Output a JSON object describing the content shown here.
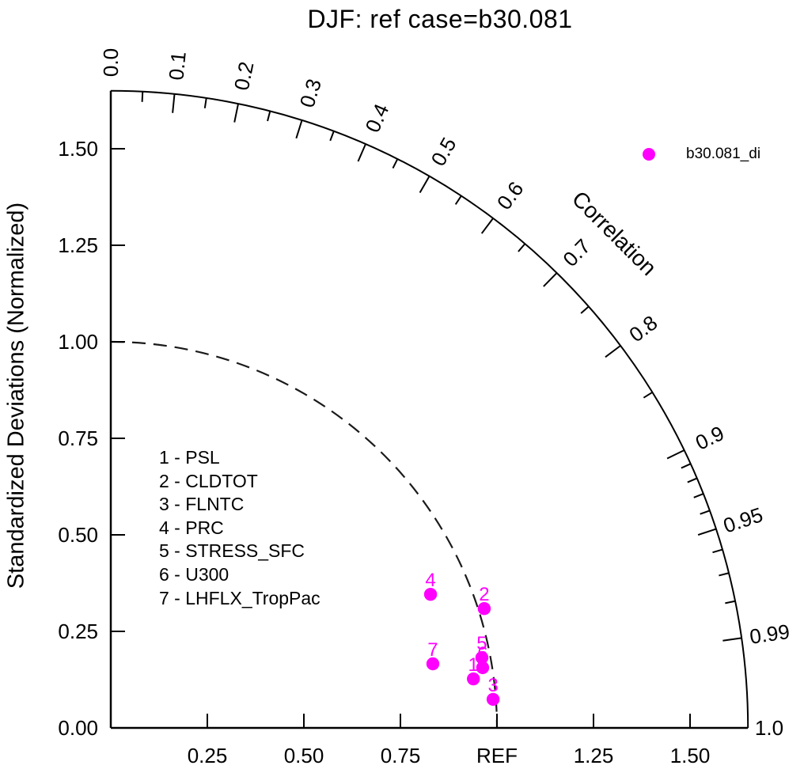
{
  "title": "DJF: ref case=b30.081",
  "ylabel": "Standardized Deviations (Normalized)",
  "legend": {
    "label": "b30.081_di",
    "marker_color": "#FF00FF"
  },
  "variable_key": {
    "items": [
      "1 - PSL",
      "2 - CLDTOT",
      "3 - FLNTC",
      "4 - PRC",
      "5 - STRESS_SFC",
      "6 - U300",
      "7 - LHFLX_TropPac"
    ]
  },
  "colors": {
    "marker": "#FF00FF",
    "axis": "#000000",
    "reference_arc": "#1a1a1a",
    "text": "#000000",
    "background": "#FFFFFF"
  },
  "chart_data": {
    "type": "scatter",
    "variant": "taylor_diagram",
    "title": "DJF: ref case=b30.081",
    "ylabel": "Standardized Deviations (Normalized)",
    "arc_label": "Correlation",
    "radial_limit": 1.65,
    "reference_radius": 1.0,
    "x_axis": {
      "tick_values": [
        0.25,
        0.5,
        0.75,
        1.0,
        1.25,
        1.5
      ],
      "tick_labels": [
        "0.25",
        "0.50",
        "0.75",
        "REF",
        "1.25",
        "1.50"
      ]
    },
    "y_axis": {
      "tick_values": [
        0,
        0.25,
        0.5,
        0.75,
        1.0,
        1.25,
        1.5
      ],
      "tick_labels": [
        "0.00",
        "0.25",
        "0.50",
        "0.75",
        "1.00",
        "1.25",
        "1.50"
      ]
    },
    "correlation_axis": {
      "major_ticks": [
        0,
        0.1,
        0.2,
        0.3,
        0.4,
        0.5,
        0.6,
        0.7,
        0.8,
        0.9,
        0.95,
        0.99
      ],
      "minor_ticks": [
        0.05,
        0.15,
        0.25,
        0.35,
        0.45,
        0.55,
        0.65,
        0.75,
        0.85,
        0.91,
        0.92,
        0.93,
        0.94,
        0.96,
        0.97,
        0.98
      ],
      "labels": [
        {
          "value": 0.0,
          "text": "0.0"
        },
        {
          "value": 0.1,
          "text": "0.1"
        },
        {
          "value": 0.2,
          "text": "0.2"
        },
        {
          "value": 0.3,
          "text": "0.3"
        },
        {
          "value": 0.4,
          "text": "0.4"
        },
        {
          "value": 0.5,
          "text": "0.5"
        },
        {
          "value": 0.6,
          "text": "0.6"
        },
        {
          "value": 0.7,
          "text": "0.7"
        },
        {
          "value": 0.8,
          "text": "0.8"
        },
        {
          "value": 0.9,
          "text": "0.9"
        },
        {
          "value": 0.95,
          "text": "0.95"
        },
        {
          "value": 0.99,
          "text": "0.99"
        },
        {
          "value": 1.0,
          "text": "1.0"
        }
      ]
    },
    "series": [
      {
        "name": "b30.081_di",
        "color": "#FF00FF",
        "points": [
          {
            "label": "1",
            "variable": "PSL",
            "x": 0.939,
            "y": 0.127,
            "std_dev": 0.947,
            "correlation": 0.991
          },
          {
            "label": "2",
            "variable": "CLDTOT",
            "x": 0.967,
            "y": 0.309,
            "std_dev": 1.015,
            "correlation": 0.953
          },
          {
            "label": "3",
            "variable": "FLNTC",
            "x": 0.99,
            "y": 0.074,
            "std_dev": 0.993,
            "correlation": 0.997
          },
          {
            "label": "4",
            "variable": "PRC",
            "x": 0.828,
            "y": 0.346,
            "std_dev": 0.897,
            "correlation": 0.923
          },
          {
            "label": "5",
            "variable": "STRESS_SFC",
            "x": 0.961,
            "y": 0.182,
            "std_dev": 0.978,
            "correlation": 0.982
          },
          {
            "label": "6",
            "variable": "U300",
            "x": 0.963,
            "y": 0.156,
            "std_dev": 0.976,
            "correlation": 0.987
          },
          {
            "label": "7",
            "variable": "LHFLX_TropPac",
            "x": 0.834,
            "y": 0.166,
            "std_dev": 0.85,
            "correlation": 0.981
          }
        ]
      }
    ]
  }
}
